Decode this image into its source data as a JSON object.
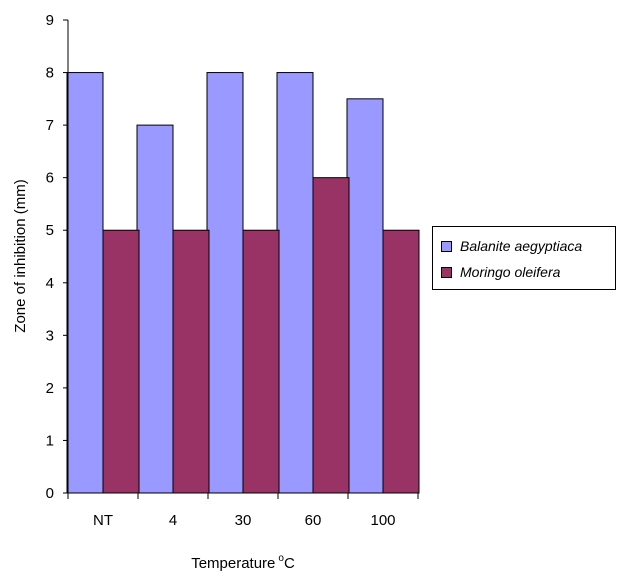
{
  "chart_data": {
    "type": "bar",
    "categories": [
      "NT",
      "4",
      "30",
      "60",
      "100"
    ],
    "series": [
      {
        "name": "Balanite aegyptiaca",
        "values": [
          8,
          7,
          8,
          8,
          7.5
        ],
        "color": "#9999ff"
      },
      {
        "name": "Moringo oleifera",
        "values": [
          5,
          5,
          5,
          6,
          5
        ],
        "color": "#993366"
      }
    ],
    "xlabel": "Temperature",
    "xlabel_sup": "o",
    "xlabel_suffix": "C",
    "ylabel": "Zone of inhibition (mm)",
    "ylim": [
      0,
      9
    ],
    "yticks": [
      0,
      1,
      2,
      3,
      4,
      5,
      6,
      7,
      8,
      9
    ],
    "grid": false,
    "legend": "right"
  }
}
